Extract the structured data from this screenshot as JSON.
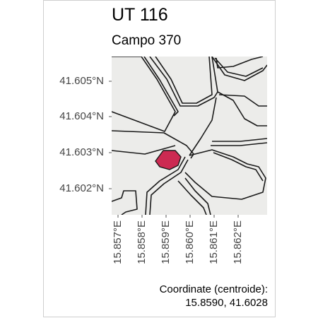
{
  "header": {
    "title": "UT 116",
    "subtitle": "Campo 370"
  },
  "map": {
    "background_color": "#ececea",
    "road_color": "#1a1a1a",
    "highlight_color": "#cc2a52",
    "lat_ticks": [
      "41.605°N",
      "41.604°N",
      "41.603°N",
      "41.602°N"
    ],
    "lon_ticks": [
      "15.857°E",
      "15.858°E",
      "15.859°E",
      "15.860°E",
      "15.861°E",
      "15.862°E"
    ]
  },
  "footer": {
    "coord_label": "Coordinate (centroide):",
    "coord_value": "15.8590, 41.6028"
  }
}
